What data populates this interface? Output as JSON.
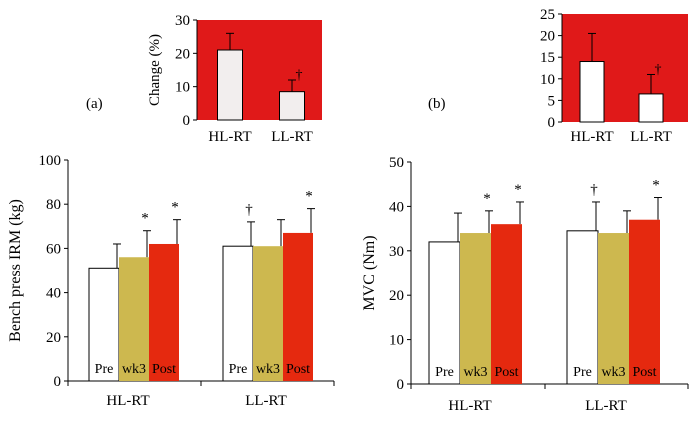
{
  "panel_labels": {
    "a": "(a)",
    "b": "(b)"
  },
  "colors": {
    "inset_background": "#e01919",
    "pre": "#ffffff",
    "wk3": "#cdb84f",
    "post": "#e5290f",
    "inset_bar_a": "#f2eeee",
    "inset_bar_b": "#ffffff"
  },
  "chart_data": [
    {
      "id": "inset_a",
      "type": "bar",
      "title": "",
      "xlabel": "",
      "ylabel": "Change (%)",
      "ylim": [
        0,
        30
      ],
      "yticks": [
        0,
        10,
        20,
        30
      ],
      "categories": [
        "HL-RT",
        "LL-RT"
      ],
      "values": [
        21,
        8.5
      ],
      "error_upper": [
        26,
        12
      ],
      "annotations": [
        {
          "category": "LL-RT",
          "symbol": "†"
        }
      ]
    },
    {
      "id": "inset_b",
      "type": "bar",
      "title": "",
      "xlabel": "",
      "ylabel": "",
      "ylim": [
        0,
        25
      ],
      "yticks": [
        0,
        5,
        10,
        15,
        20,
        25
      ],
      "categories": [
        "HL-RT",
        "LL-RT"
      ],
      "values": [
        14,
        6.5
      ],
      "error_upper": [
        20.5,
        11
      ],
      "annotations": [
        {
          "category": "LL-RT",
          "symbol": "†"
        }
      ]
    },
    {
      "id": "main_a",
      "type": "bar",
      "title": "",
      "xlabel": "",
      "ylabel": "Bench press IRM (kg)",
      "ylim": [
        0,
        100
      ],
      "yticks": [
        0,
        20,
        40,
        60,
        80,
        100
      ],
      "categories": [
        "HL-RT",
        "LL-RT"
      ],
      "series": [
        {
          "name": "Pre",
          "values": [
            51,
            61
          ],
          "error_upper": [
            62,
            72
          ],
          "annotations": [
            "",
            "†"
          ]
        },
        {
          "name": "wk3",
          "values": [
            56,
            61
          ],
          "error_upper": [
            68,
            73
          ],
          "annotations": [
            "*",
            ""
          ]
        },
        {
          "name": "Post",
          "values": [
            62,
            67
          ],
          "error_upper": [
            73,
            78
          ],
          "annotations": [
            "*",
            "*"
          ]
        }
      ]
    },
    {
      "id": "main_b",
      "type": "bar",
      "title": "",
      "xlabel": "",
      "ylabel": "MVC (Nm)",
      "ylim": [
        0,
        50
      ],
      "yticks": [
        0,
        10,
        20,
        30,
        40,
        50
      ],
      "categories": [
        "HL-RT",
        "LL-RT"
      ],
      "series": [
        {
          "name": "Pre",
          "values": [
            32,
            34.5
          ],
          "error_upper": [
            38.5,
            41
          ],
          "annotations": [
            "",
            "†"
          ]
        },
        {
          "name": "wk3",
          "values": [
            34,
            34
          ],
          "error_upper": [
            39,
            39
          ],
          "annotations": [
            "*",
            ""
          ]
        },
        {
          "name": "Post",
          "values": [
            36,
            37
          ],
          "error_upper": [
            41,
            42
          ],
          "annotations": [
            "*",
            "*"
          ]
        }
      ]
    }
  ]
}
